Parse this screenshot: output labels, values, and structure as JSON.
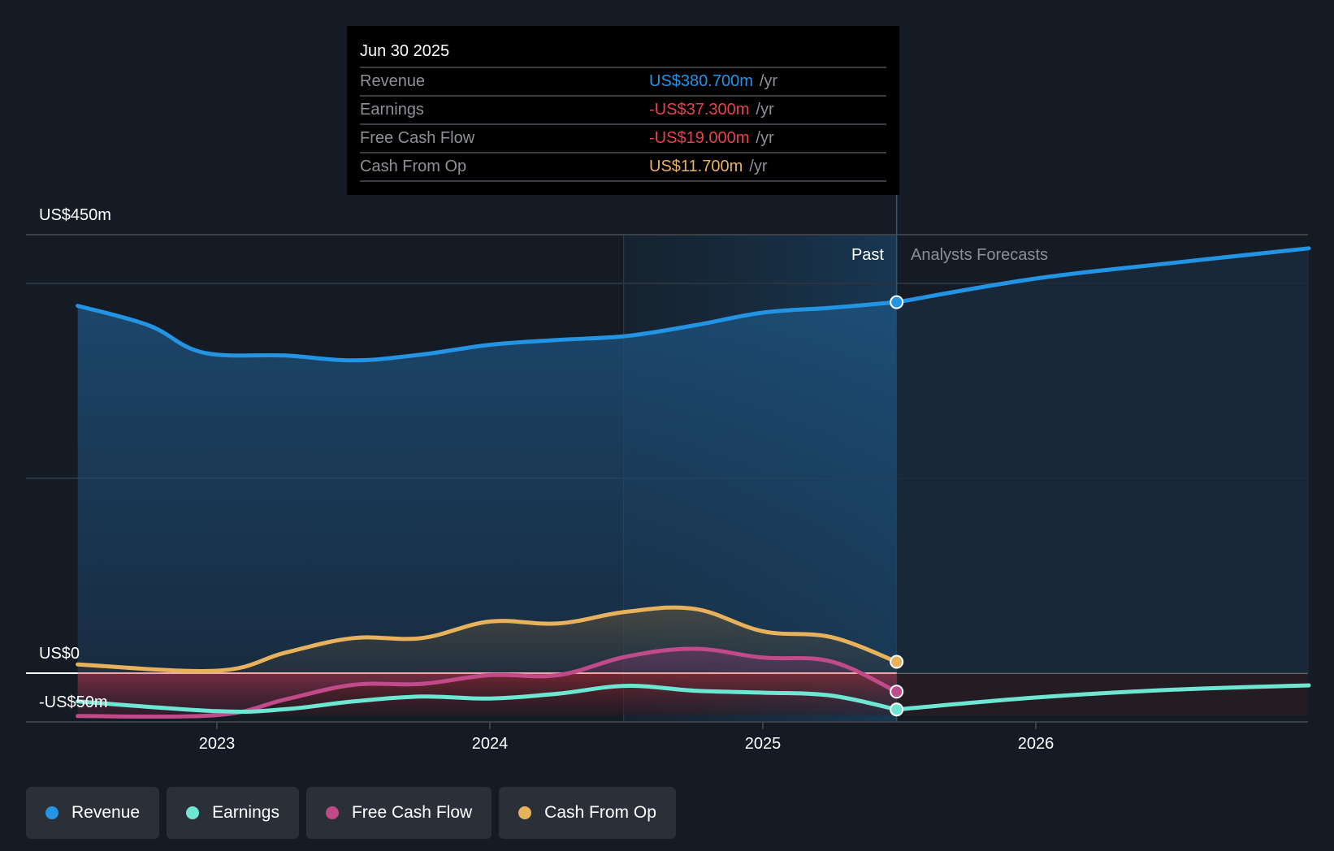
{
  "tooltip": {
    "date": "Jun 30 2025",
    "unit": "/yr",
    "rows": [
      {
        "label": "Revenue",
        "value": "US$380.700m",
        "color": "#2394e3"
      },
      {
        "label": "Earnings",
        "value": "-US$37.300m",
        "color": "#e8414b"
      },
      {
        "label": "Free Cash Flow",
        "value": "-US$19.000m",
        "color": "#e8414b"
      },
      {
        "label": "Cash From Op",
        "value": "US$11.700m",
        "color": "#e8b15c"
      }
    ]
  },
  "legend": [
    {
      "label": "Revenue",
      "color": "#2394e3"
    },
    {
      "label": "Earnings",
      "color": "#6ee6d4"
    },
    {
      "label": "Free Cash Flow",
      "color": "#c04a8a"
    },
    {
      "label": "Cash From Op",
      "color": "#e8b15c"
    }
  ],
  "chart_data": {
    "type": "line",
    "title": "",
    "xlabel": "",
    "ylabel": "",
    "y_tick_labels": [
      "US$450m",
      "US$0",
      "-US$50m"
    ],
    "ylim": [
      -50,
      450
    ],
    "xlim": [
      2022.31,
      2027.0
    ],
    "x_tick_labels": [
      "2023",
      "2024",
      "2025",
      "2026"
    ],
    "x_ticks": [
      2023,
      2024,
      2025,
      2026
    ],
    "period_labels": {
      "past": "Past",
      "forecast": "Analysts Forecasts"
    },
    "forecast_start": 2025.49,
    "highlight_start": 2024.49,
    "grid": true,
    "legend_position": "bottom-left",
    "series": [
      {
        "name": "Revenue",
        "color": "#2394e3",
        "x": [
          2022.49,
          2022.75,
          2022.95,
          2023.25,
          2023.5,
          2023.75,
          2024.0,
          2024.25,
          2024.5,
          2024.75,
          2025.0,
          2025.25,
          2025.49
        ],
        "values": [
          377,
          357,
          329,
          326,
          321,
          327,
          337,
          342,
          346,
          357,
          370,
          375,
          380.7
        ],
        "forecast_x": [
          2025.49,
          2026.0,
          2026.5,
          2027.0
        ],
        "forecast_values": [
          380.7,
          405,
          421,
          436
        ]
      },
      {
        "name": "Earnings",
        "color": "#6ee6d4",
        "x": [
          2022.49,
          2023.0,
          2023.25,
          2023.5,
          2023.75,
          2024.0,
          2024.25,
          2024.5,
          2024.75,
          2025.0,
          2025.25,
          2025.49
        ],
        "values": [
          -29,
          -39,
          -37,
          -29,
          -24,
          -26,
          -21,
          -13,
          -18,
          -20,
          -23,
          -37.3
        ],
        "forecast_x": [
          2025.49,
          2026.0,
          2026.5,
          2027.0
        ],
        "forecast_values": [
          -37.3,
          -25,
          -17,
          -12.5
        ]
      },
      {
        "name": "Free Cash Flow",
        "color": "#c04a8a",
        "x": [
          2022.49,
          2023.0,
          2023.25,
          2023.5,
          2023.75,
          2024.0,
          2024.25,
          2024.5,
          2024.75,
          2025.0,
          2025.25,
          2025.49
        ],
        "values": [
          -44,
          -43,
          -27,
          -12,
          -11,
          -2,
          -2,
          17,
          25,
          16,
          12,
          -19.0
        ]
      },
      {
        "name": "Cash From Op",
        "color": "#e8b15c",
        "x": [
          2022.49,
          2023.0,
          2023.25,
          2023.5,
          2023.75,
          2024.0,
          2024.25,
          2024.5,
          2024.75,
          2025.0,
          2025.25,
          2025.49
        ],
        "values": [
          9,
          2.5,
          21,
          36,
          36,
          53,
          51,
          63,
          66,
          43,
          37,
          11.7
        ]
      }
    ]
  }
}
